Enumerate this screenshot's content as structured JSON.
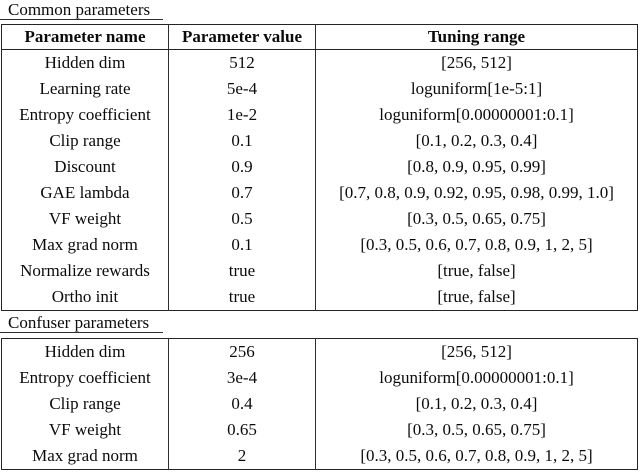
{
  "page": {
    "background": "#ffffff",
    "text_color": "#0b0b0b",
    "rule_color": "#242424"
  },
  "columns": {
    "name": "Parameter name",
    "value": "Parameter value",
    "range": "Tuning range"
  },
  "common": {
    "label": "Common parameters",
    "rows": [
      {
        "name": "Hidden dim",
        "value": "512",
        "range": "[256, 512]"
      },
      {
        "name": "Learning rate",
        "value": "5e-4",
        "range": "loguniform[1e-5:1]"
      },
      {
        "name": "Entropy coefficient",
        "value": "1e-2",
        "range": "loguniform[0.00000001:0.1]"
      },
      {
        "name": "Clip range",
        "value": "0.1",
        "range": "[0.1, 0.2, 0.3, 0.4]"
      },
      {
        "name": "Discount",
        "value": "0.9",
        "range": "[0.8, 0.9, 0.95, 0.99]"
      },
      {
        "name": "GAE lambda",
        "value": "0.7",
        "range": "[0.7, 0.8, 0.9, 0.92, 0.95, 0.98, 0.99, 1.0]"
      },
      {
        "name": "VF weight",
        "value": "0.5",
        "range": "[0.3, 0.5, 0.65, 0.75]"
      },
      {
        "name": "Max grad norm",
        "value": "0.1",
        "range": "[0.3, 0.5, 0.6, 0.7, 0.8, 0.9, 1, 2, 5]"
      },
      {
        "name": "Normalize rewards",
        "value": "true",
        "range": "[true, false]"
      },
      {
        "name": "Ortho init",
        "value": "true",
        "range": "[true, false]"
      }
    ]
  },
  "confuser": {
    "label": "Confuser parameters",
    "rows": [
      {
        "name": "Hidden dim",
        "value": "256",
        "range": "[256, 512]"
      },
      {
        "name": "Entropy coefficient",
        "value": "3e-4",
        "range": "loguniform[0.00000001:0.1]"
      },
      {
        "name": "Clip range",
        "value": "0.4",
        "range": "[0.1, 0.2, 0.3, 0.4]"
      },
      {
        "name": "VF weight",
        "value": "0.65",
        "range": "[0.3, 0.5, 0.65, 0.75]"
      },
      {
        "name": "Max grad norm",
        "value": "2",
        "range": "[0.3, 0.5, 0.6, 0.7, 0.8, 0.9, 1, 2, 5]"
      }
    ]
  }
}
